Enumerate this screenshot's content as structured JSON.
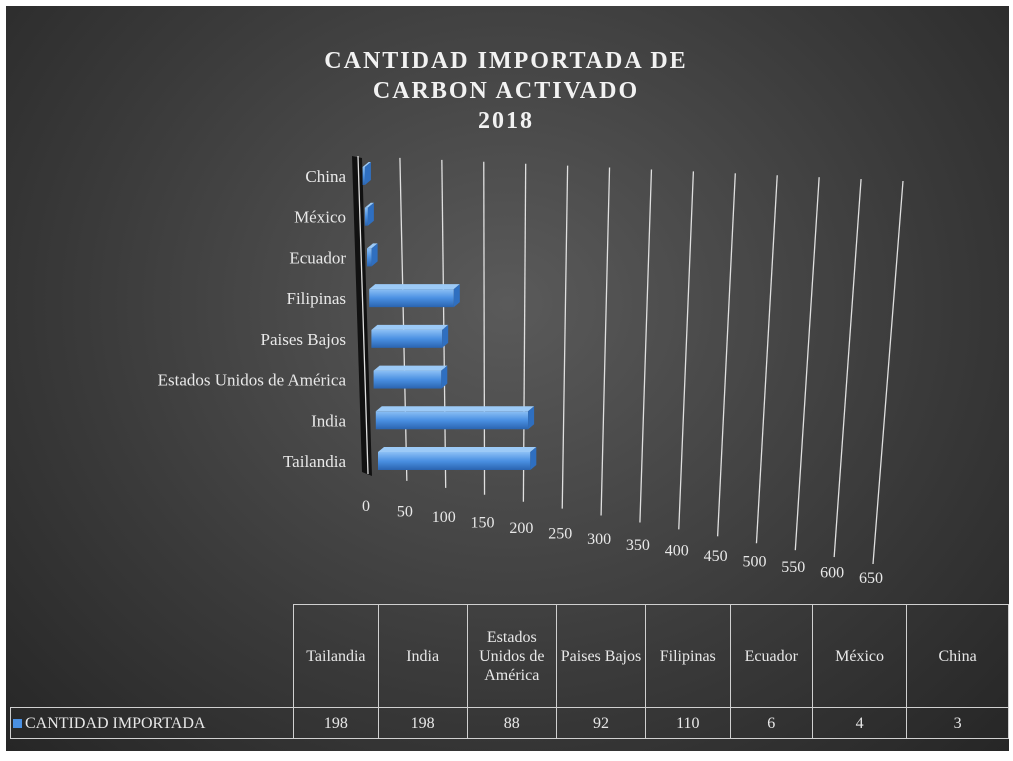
{
  "chart_data": {
    "type": "bar",
    "orientation": "horizontal",
    "title": [
      "CANTIDAD IMPORTADA DE",
      "CARBON ACTIVADO",
      "2018"
    ],
    "categories": [
      "Tailandia",
      "India",
      "Estados Unidos de América",
      "Paises Bajos",
      "Filipinas",
      "Ecuador",
      "México",
      "China"
    ],
    "series": [
      {
        "name": "CANTIDAD IMPORTADA",
        "color": "#4a90e2",
        "values": [
          198,
          198,
          88,
          92,
          110,
          6,
          4,
          3
        ]
      }
    ],
    "xlim": [
      0,
      650
    ],
    "xticks": [
      0,
      50,
      100,
      150,
      200,
      250,
      300,
      350,
      400,
      450,
      500,
      550,
      600,
      650
    ],
    "grid": true,
    "data_table": true
  }
}
